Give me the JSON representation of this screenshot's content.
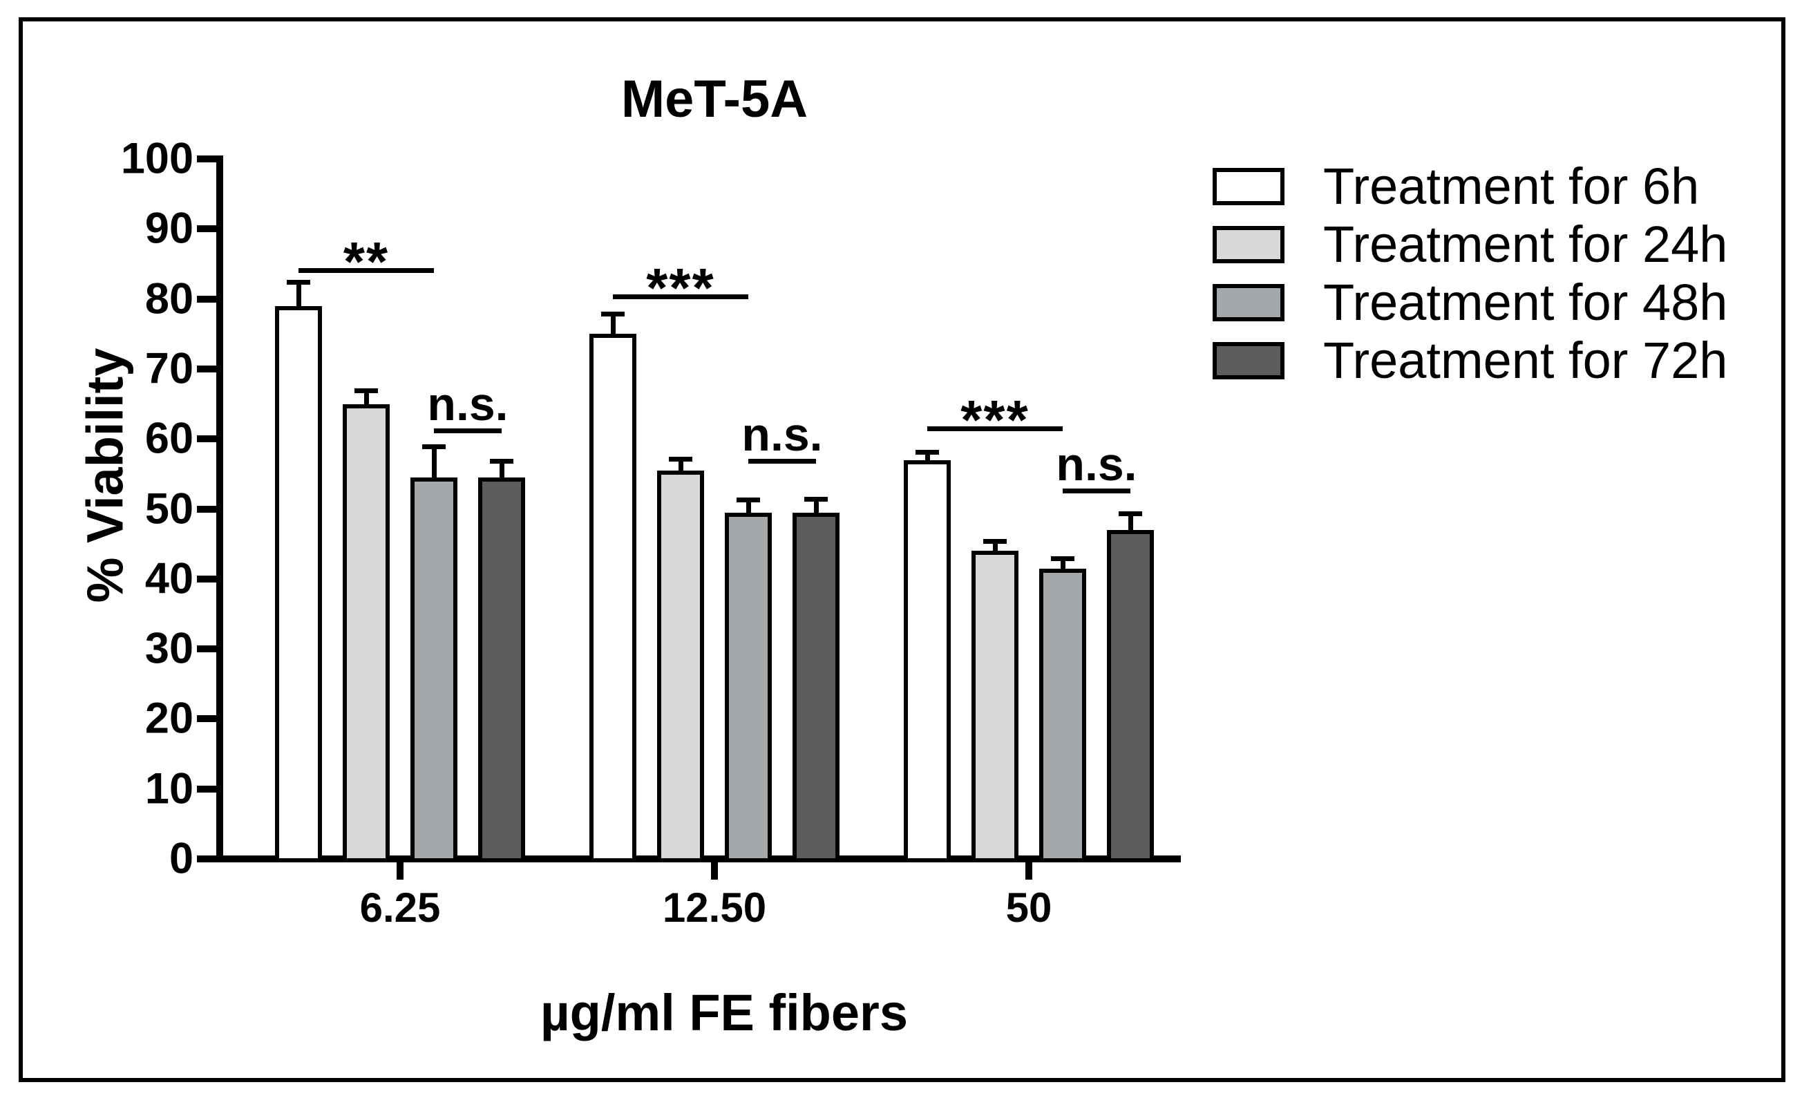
{
  "chart_data": {
    "type": "bar",
    "title": "MeT-5A",
    "xlabel": "µg/ml FE fibers",
    "ylabel": "% Viability",
    "ylim": [
      0,
      100
    ],
    "yticks": [
      0,
      10,
      20,
      30,
      40,
      50,
      60,
      70,
      80,
      90,
      100
    ],
    "grid": false,
    "legend_position": "top-right",
    "categories": [
      "6.25",
      "12.50",
      "50"
    ],
    "series": [
      {
        "name": "Treatment for 6h",
        "color": "#ffffff",
        "values": [
          79,
          75,
          57
        ],
        "errors": [
          3,
          2.5,
          0.7
        ]
      },
      {
        "name": "Treatment for 24h",
        "color": "#d8d8d8",
        "values": [
          65,
          55.5,
          44
        ],
        "errors": [
          1.5,
          1.3,
          1
        ]
      },
      {
        "name": "Treatment for 48h",
        "color": "#a5a8ab",
        "values": [
          54.5,
          49.5,
          41.5
        ],
        "errors": [
          4,
          1.4,
          1
        ]
      },
      {
        "name": "Treatment for 72h",
        "color": "#5d5d5d",
        "values": [
          54.5,
          49.5,
          47
        ],
        "errors": [
          2,
          1.5,
          2
        ]
      }
    ],
    "annotations": [
      {
        "category": "6.25",
        "label": "**",
        "from_series": 0,
        "to_series": 2,
        "y_value": 84.4
      },
      {
        "category": "6.25",
        "label": "n.s.",
        "from_series": 2,
        "to_series": 3,
        "y_value": 61.5
      },
      {
        "category": "12.50",
        "label": "***",
        "from_series": 0,
        "to_series": 2,
        "y_value": 80.7
      },
      {
        "category": "12.50",
        "label": "n.s.",
        "from_series": 2,
        "to_series": 3,
        "y_value": 57.2
      },
      {
        "category": "50",
        "label": "***",
        "from_series": 0,
        "to_series": 2,
        "y_value": 61.8
      },
      {
        "category": "50",
        "label": "n.s.",
        "from_series": 2,
        "to_series": 3,
        "y_value": 52.9
      }
    ]
  },
  "colors": {
    "axis": "#000000",
    "frame": "#000000",
    "background": "#ffffff"
  }
}
